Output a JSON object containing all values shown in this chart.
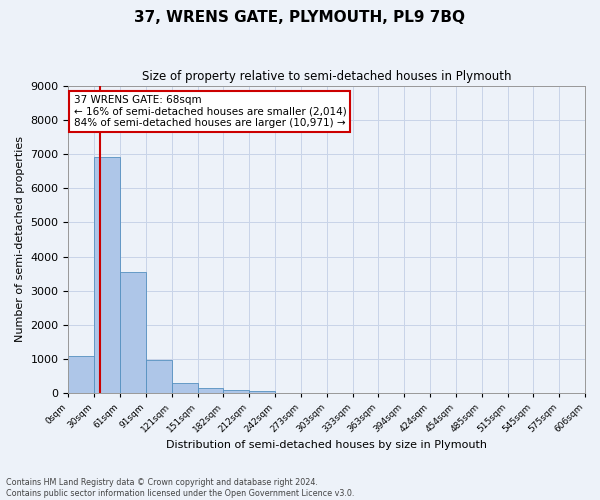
{
  "title": "37, WRENS GATE, PLYMOUTH, PL9 7BQ",
  "subtitle": "Size of property relative to semi-detached houses in Plymouth",
  "xlabel": "Distribution of semi-detached houses by size in Plymouth",
  "ylabel": "Number of semi-detached properties",
  "bins": [
    "0sqm",
    "30sqm",
    "61sqm",
    "91sqm",
    "121sqm",
    "151sqm",
    "182sqm",
    "212sqm",
    "242sqm",
    "273sqm",
    "303sqm",
    "333sqm",
    "363sqm",
    "394sqm",
    "424sqm",
    "454sqm",
    "485sqm",
    "515sqm",
    "545sqm",
    "575sqm",
    "606sqm"
  ],
  "values": [
    1100,
    6900,
    3550,
    980,
    310,
    155,
    110,
    80,
    0,
    0,
    0,
    0,
    0,
    0,
    0,
    0,
    0,
    0,
    0,
    0
  ],
  "bar_color": "#aec6e8",
  "bar_edge_color": "#5590c0",
  "grid_color": "#c8d4e8",
  "background_color": "#edf2f9",
  "annotation_text": "37 WRENS GATE: 68sqm\n← 16% of semi-detached houses are smaller (2,014)\n84% of semi-detached houses are larger (10,971) →",
  "annotation_box_color": "#ffffff",
  "annotation_box_edge": "#cc0000",
  "red_line_color": "#cc0000",
  "ylim": [
    0,
    9000
  ],
  "footer": "Contains HM Land Registry data © Crown copyright and database right 2024.\nContains public sector information licensed under the Open Government Licence v3.0."
}
